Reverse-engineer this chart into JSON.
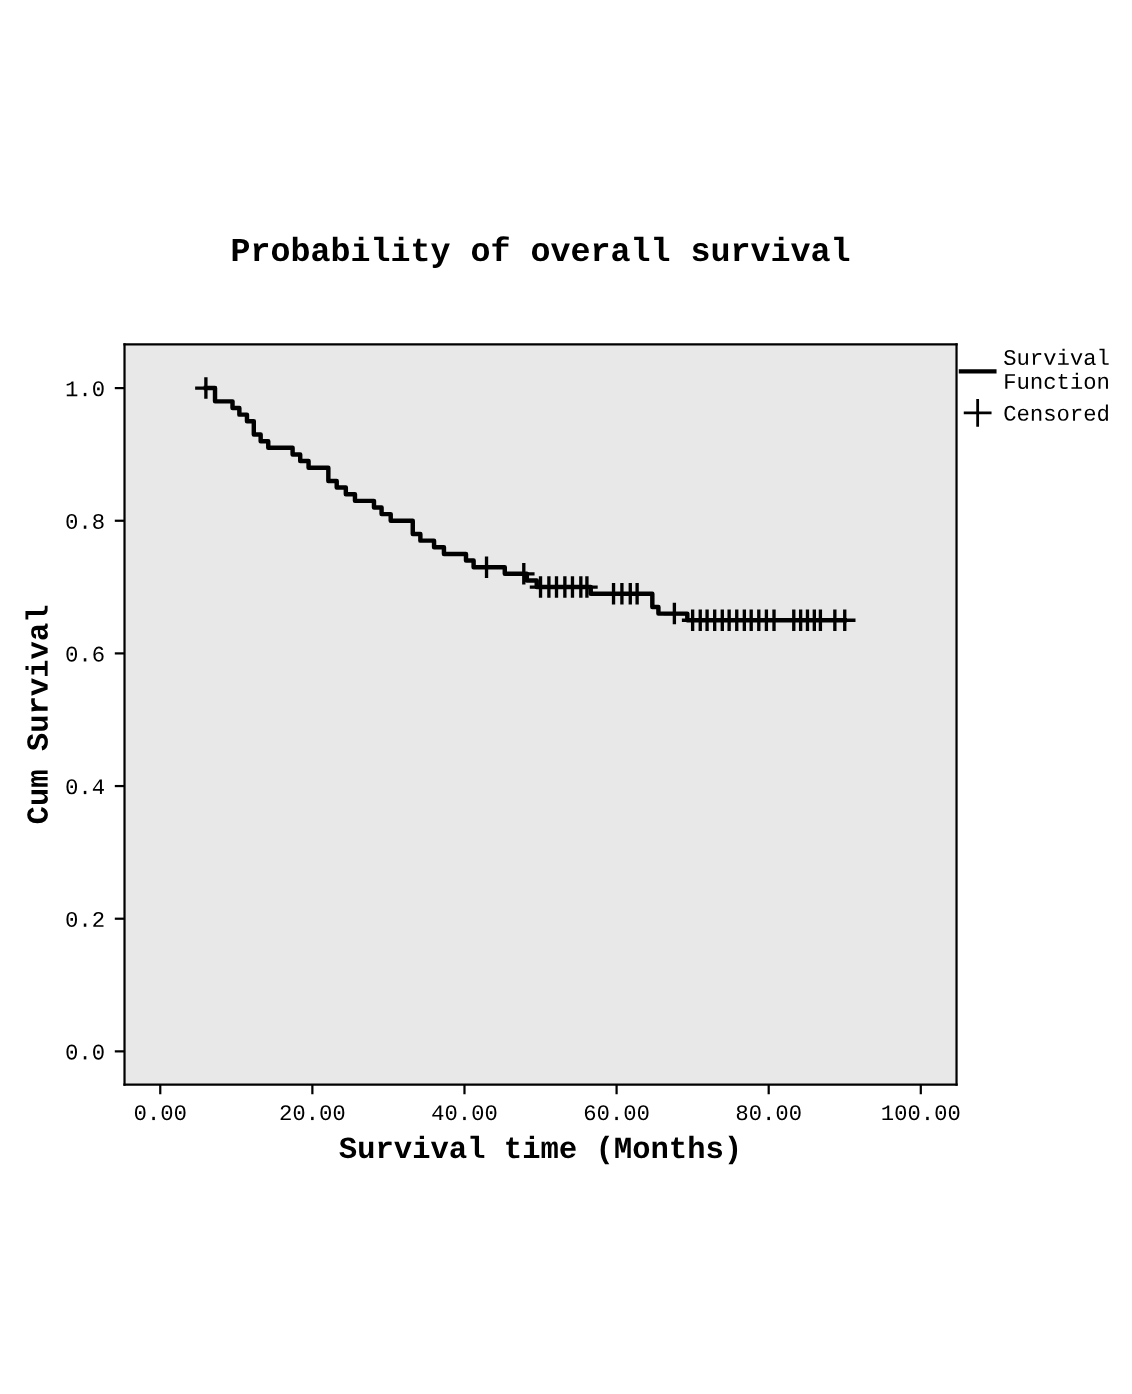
{
  "chart_data": {
    "type": "step",
    "title": "Probability of overall survival",
    "xlabel": "Survival time (Months)",
    "ylabel": "Cum Survival",
    "xlim": [
      -4.7,
      104.7
    ],
    "ylim": [
      -0.05,
      1.066
    ],
    "xticks": [
      {
        "value": 0,
        "label": "0.00"
      },
      {
        "value": 20,
        "label": "20.00"
      },
      {
        "value": 40,
        "label": "40.00"
      },
      {
        "value": 60,
        "label": "60.00"
      },
      {
        "value": 80,
        "label": "80.00"
      },
      {
        "value": 100,
        "label": "100.00"
      }
    ],
    "yticks": [
      {
        "value": 0,
        "label": "0.0"
      },
      {
        "value": 0.2,
        "label": "0.2"
      },
      {
        "value": 0.4,
        "label": "0.4"
      },
      {
        "value": 0.6,
        "label": "0.6"
      },
      {
        "value": 0.8,
        "label": "0.8"
      },
      {
        "value": 1.0,
        "label": "1.0"
      }
    ],
    "grid": false,
    "legend": "top right",
    "series": [
      {
        "name": "Survival Function",
        "color": "#000000",
        "x": [
          6,
          7.2,
          9.5,
          10.4,
          11.4,
          12.3,
          13.2,
          14.2,
          16.2,
          17.4,
          18.4,
          19.5,
          21.1,
          22.1,
          23.2,
          24.4,
          25.6,
          28.1,
          29.1,
          30.3,
          33.2,
          34.2,
          36.0,
          37.3,
          38.2,
          40.2,
          41.2,
          45.3,
          48.2,
          49.5,
          56.6,
          64.7,
          65.5,
          69.3,
          90.0
        ],
        "values": [
          1.0,
          0.98,
          0.97,
          0.96,
          0.95,
          0.93,
          0.92,
          0.91,
          0.91,
          0.9,
          0.89,
          0.88,
          0.88,
          0.86,
          0.85,
          0.84,
          0.83,
          0.82,
          0.81,
          0.8,
          0.78,
          0.77,
          0.76,
          0.75,
          0.75,
          0.74,
          0.73,
          0.72,
          0.71,
          0.7,
          0.69,
          0.67,
          0.66,
          0.65,
          0.65
        ]
      },
      {
        "name": "Censored",
        "type": "scatter",
        "marker": "cross",
        "color": "#000000",
        "x": [
          6,
          42.9,
          47.8,
          50.0,
          51.1,
          52.1,
          53.2,
          54.2,
          55.3,
          56.1,
          59.6,
          60.7,
          61.8,
          62.7,
          67.6,
          70.0,
          71.0,
          71.9,
          72.9,
          73.9,
          74.8,
          75.8,
          76.8,
          77.7,
          78.7,
          79.7,
          80.7,
          83.3,
          84.2,
          85.1,
          86.0,
          86.8,
          88.7,
          90.0
        ],
        "values": [
          1.0,
          0.73,
          0.72,
          0.7,
          0.7,
          0.7,
          0.7,
          0.7,
          0.7,
          0.7,
          0.69,
          0.69,
          0.69,
          0.69,
          0.66,
          0.65,
          0.65,
          0.65,
          0.65,
          0.65,
          0.65,
          0.65,
          0.65,
          0.65,
          0.65,
          0.65,
          0.65,
          0.65,
          0.65,
          0.65,
          0.65,
          0.65,
          0.65,
          0.65
        ]
      }
    ]
  }
}
